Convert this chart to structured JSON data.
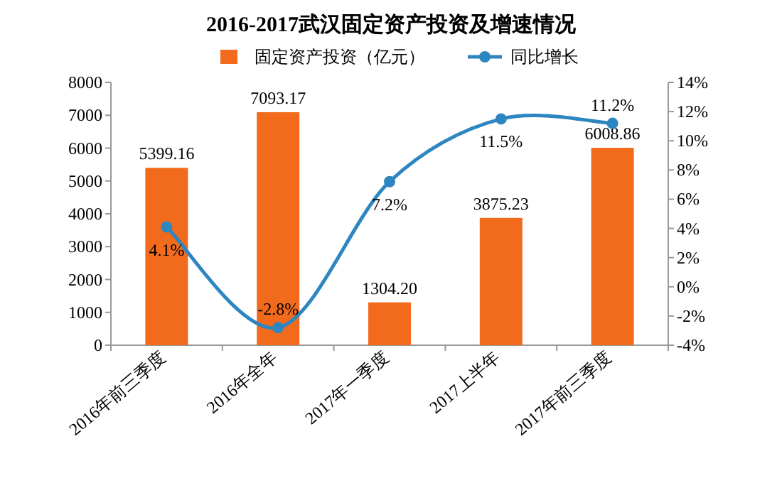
{
  "chart_data": {
    "type": "bar",
    "title": "2016-2017武汉固定资产投资及增速情况",
    "categories": [
      "2016年前三季度",
      "2016年全年",
      "2017年一季度",
      "2017上半年",
      "2017年前三季度"
    ],
    "series": [
      {
        "name": "固定资产投资（亿元）",
        "color": "#f26b1d",
        "values": [
          5399.16,
          7093.17,
          1304.2,
          3875.23,
          6008.86
        ],
        "value_labels": [
          "5399.16",
          "7093.17",
          "1304.20",
          "3875.23",
          "6008.86"
        ]
      },
      {
        "name": "同比增长",
        "type": "line",
        "axis": "y2",
        "color": "#2e86c1",
        "marker": "circle",
        "values": [
          4.1,
          -2.8,
          7.2,
          11.5,
          11.2
        ],
        "value_labels": [
          "4.1%",
          "-2.8%",
          "7.2%",
          "11.5%",
          "11.2%"
        ]
      }
    ],
    "ylim": [
      0,
      8000
    ],
    "yticks": [
      0,
      1000,
      2000,
      3000,
      4000,
      5000,
      6000,
      7000,
      8000
    ],
    "y2lim": [
      -4,
      14
    ],
    "y2ticks": [
      {
        "value": -4,
        "label": "-4%"
      },
      {
        "value": -2,
        "label": "-2%"
      },
      {
        "value": 0,
        "label": "0%"
      },
      {
        "value": 2,
        "label": "2%"
      },
      {
        "value": 4,
        "label": "4%"
      },
      {
        "value": 6,
        "label": "6%"
      },
      {
        "value": 8,
        "label": "8%"
      },
      {
        "value": 10,
        "label": "10%"
      },
      {
        "value": 12,
        "label": "12%"
      },
      {
        "value": 14,
        "label": "14%"
      }
    ],
    "legend": "top",
    "grid": false
  }
}
